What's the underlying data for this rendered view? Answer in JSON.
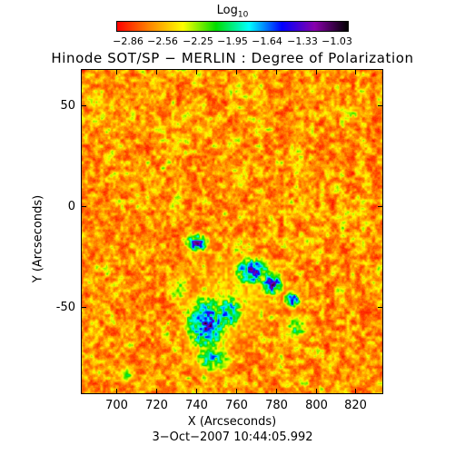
{
  "colorbar": {
    "title_base": "Log",
    "title_subscript": "10",
    "tick_labels": [
      "−2.86",
      "−2.56",
      "−2.25",
      "−1.95",
      "−1.64",
      "−1.33",
      "−1.03"
    ],
    "colors": [
      "#ff0000",
      "#ff8800",
      "#ffff00",
      "#00dd00",
      "#00ffff",
      "#0000ff",
      "#8800aa",
      "#000000"
    ]
  },
  "title": "Hinode SOT/SP − MERLIN : Degree of Polarization",
  "timestamp": "3−Oct−2007 10:44:05.992",
  "chart_data": {
    "type": "heatmap",
    "title": "Hinode SOT/SP − MERLIN : Degree of Polarization",
    "xlabel": "X (Arcseconds)",
    "ylabel": "Y (Arcseconds)",
    "xlim": [
      682,
      834
    ],
    "ylim": [
      -93,
      68
    ],
    "x_ticks": [
      700,
      720,
      740,
      760,
      780,
      800,
      820
    ],
    "y_ticks": [
      50,
      0,
      -50
    ],
    "color_scale": "Log10 degree of polarization",
    "value_range": [
      -2.86,
      -1.03
    ],
    "background_level": -2.86,
    "regions": [
      {
        "x": 758,
        "y": -45,
        "rx": 26,
        "ry": 30,
        "level": -2.4
      },
      {
        "x": 745,
        "y": -58,
        "rx": 11,
        "ry": 14,
        "level": -1.5
      },
      {
        "x": 768,
        "y": -32,
        "rx": 9,
        "ry": 7,
        "level": -1.45
      },
      {
        "x": 778,
        "y": -38,
        "rx": 6,
        "ry": 6,
        "level": -1.5
      },
      {
        "x": 788,
        "y": -46,
        "rx": 4,
        "ry": 4,
        "level": -1.4
      },
      {
        "x": 740,
        "y": -18,
        "rx": 6,
        "ry": 5,
        "level": -1.6
      },
      {
        "x": 756,
        "y": -52,
        "rx": 7,
        "ry": 9,
        "level": -1.7
      },
      {
        "x": 748,
        "y": -75,
        "rx": 10,
        "ry": 8,
        "level": -1.9
      },
      {
        "x": 790,
        "y": -60,
        "rx": 7,
        "ry": 8,
        "level": -2.1
      },
      {
        "x": 732,
        "y": -40,
        "rx": 5,
        "ry": 9,
        "level": -2.2
      },
      {
        "x": 705,
        "y": -83,
        "rx": 5,
        "ry": 5,
        "level": -2.2
      },
      {
        "x": 690,
        "y": 52,
        "rx": 7,
        "ry": 5,
        "level": -2.3
      },
      {
        "x": 818,
        "y": 46,
        "rx": 6,
        "ry": 5,
        "level": -2.3
      }
    ]
  }
}
